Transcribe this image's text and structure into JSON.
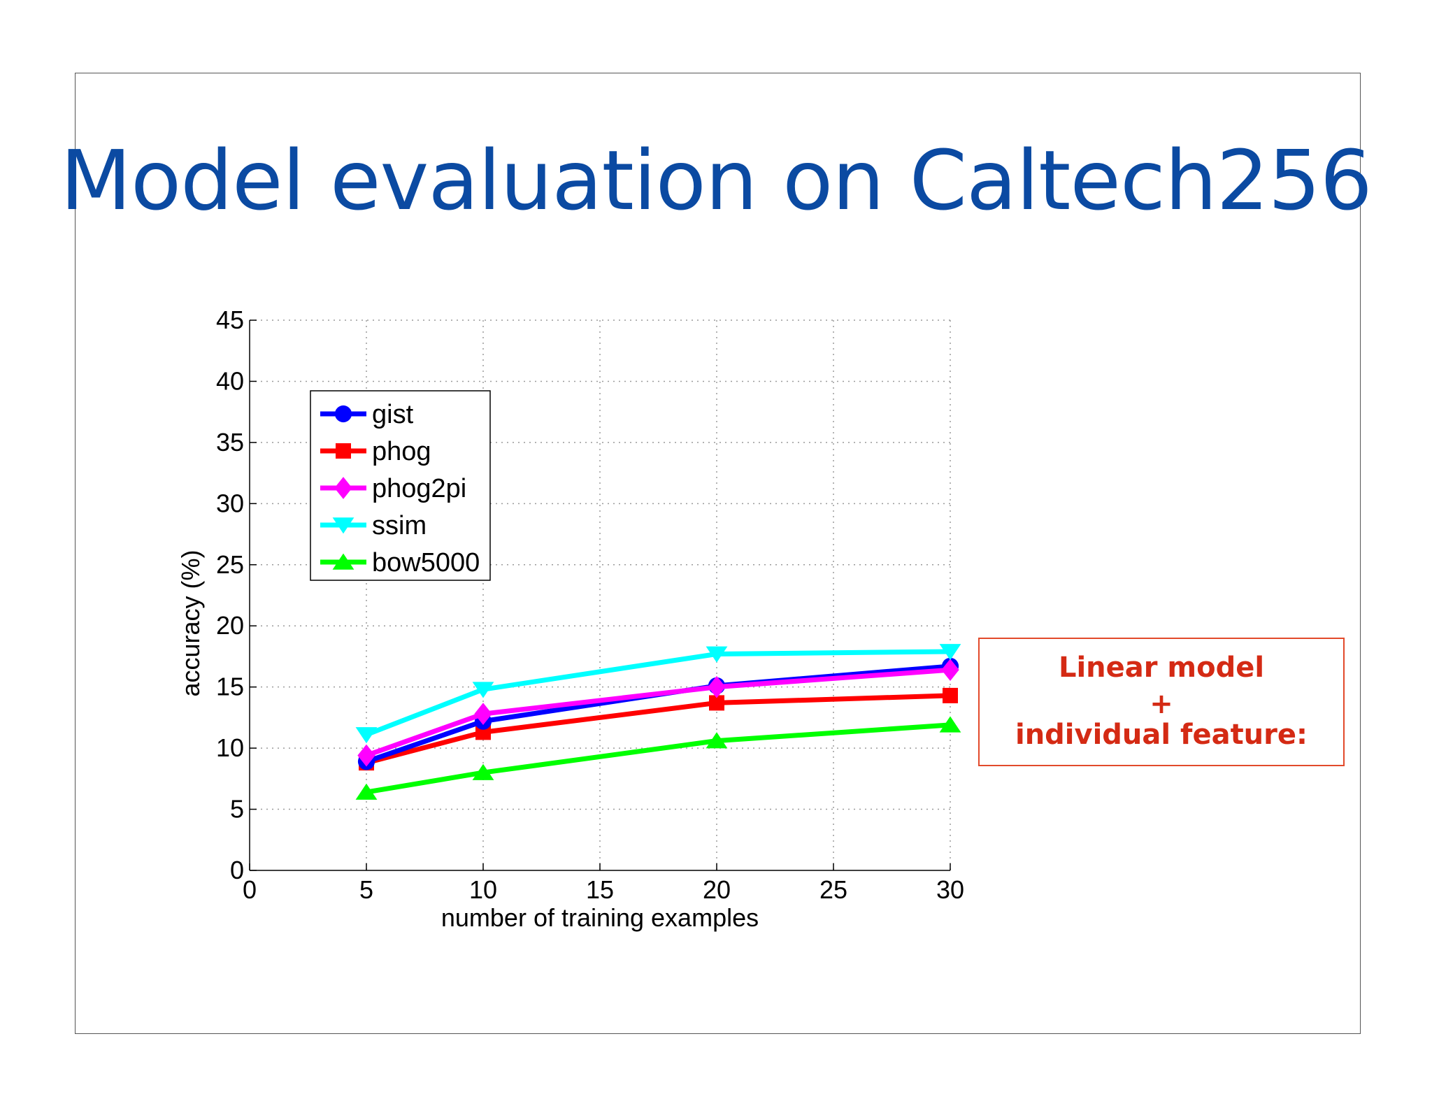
{
  "slide": {
    "title": "Model evaluation on Caltech256",
    "callout": {
      "line1": "Linear model",
      "line2": "+",
      "line3": "individual feature:"
    }
  },
  "chart_data": {
    "type": "line",
    "title": "",
    "xlabel": "number of training examples",
    "ylabel": "accuracy (%)",
    "xlim": [
      0,
      30
    ],
    "ylim": [
      0,
      45
    ],
    "xticks": [
      0,
      5,
      10,
      15,
      20,
      25,
      30
    ],
    "yticks": [
      0,
      5,
      10,
      15,
      20,
      25,
      30,
      35,
      40,
      45
    ],
    "grid": true,
    "legend_position": "top-left",
    "x": [
      5,
      10,
      20,
      30
    ],
    "series": [
      {
        "name": "gist",
        "color": "#0000ff",
        "marker": "circle",
        "values": [
          8.9,
          12.2,
          15.1,
          16.7
        ]
      },
      {
        "name": "phog",
        "color": "#ff0000",
        "marker": "square",
        "values": [
          8.8,
          11.3,
          13.7,
          14.3
        ]
      },
      {
        "name": "phog2pi",
        "color": "#ff00ff",
        "marker": "diamond",
        "values": [
          9.4,
          12.8,
          15.0,
          16.4
        ]
      },
      {
        "name": "ssim",
        "color": "#00ffff",
        "marker": "triangle-down",
        "values": [
          11.1,
          14.8,
          17.7,
          17.9
        ]
      },
      {
        "name": "bow5000",
        "color": "#00ff00",
        "marker": "triangle-up",
        "values": [
          6.4,
          8.0,
          10.6,
          11.9
        ]
      }
    ]
  }
}
